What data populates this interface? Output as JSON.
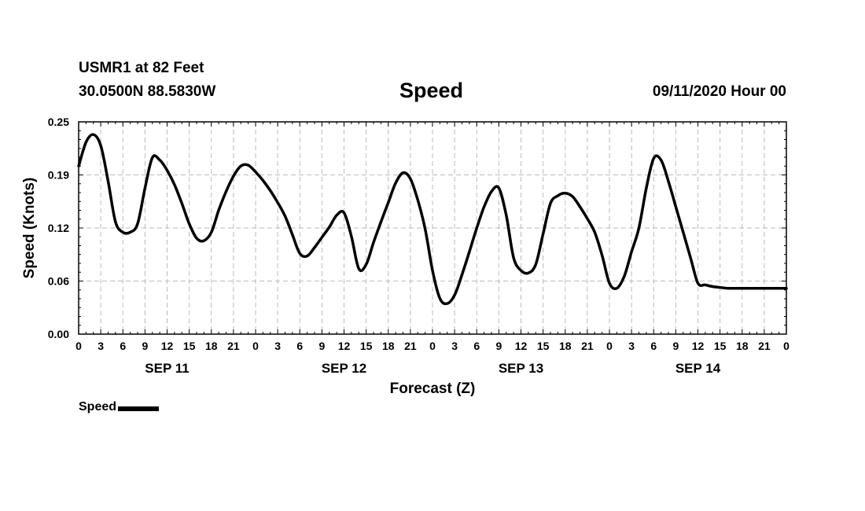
{
  "header": {
    "station": "USMR1 at 82 Feet",
    "coords": "30.0500N 88.5830W",
    "title": "Speed",
    "run": "09/11/2020 Hour 00"
  },
  "chart_data": {
    "type": "line",
    "title": "Speed",
    "xlabel": "Forecast (Z)",
    "ylabel": "Speed (Knots)",
    "ylim": [
      0,
      0.25
    ],
    "yticks": [
      "0.00",
      "0.06",
      "0.12",
      "0.19",
      "0.25"
    ],
    "xlim": [
      0,
      96
    ],
    "xtick_labels": [
      "0",
      "3",
      "6",
      "9",
      "12",
      "15",
      "18",
      "21",
      "0",
      "3",
      "6",
      "9",
      "12",
      "15",
      "18",
      "21",
      "0",
      "3",
      "6",
      "9",
      "12",
      "15",
      "18",
      "21",
      "0",
      "3",
      "6",
      "9",
      "12",
      "15",
      "18",
      "21",
      "0"
    ],
    "date_labels": [
      "SEP 11",
      "SEP 12",
      "SEP 13",
      "SEP 14"
    ],
    "grid": true,
    "legend": "bottom-left",
    "series": [
      {
        "name": "Speed",
        "color": "#000000",
        "x": [
          0,
          1,
          2,
          3,
          4,
          5,
          6,
          7,
          8,
          9,
          10,
          11,
          12,
          13,
          14,
          15,
          16,
          17,
          18,
          19,
          20,
          21,
          22,
          23,
          24,
          25,
          26,
          27,
          28,
          29,
          30,
          31,
          32,
          33,
          34,
          35,
          36,
          37,
          38,
          39,
          40,
          41,
          42,
          43,
          44,
          45,
          46,
          47,
          48,
          49,
          50,
          51,
          52,
          53,
          54,
          55,
          56,
          57,
          58,
          59,
          60,
          61,
          62,
          63,
          64,
          65,
          66,
          67,
          68,
          69,
          70,
          71,
          72,
          73,
          74,
          75,
          76,
          77,
          78,
          79,
          80,
          81,
          82,
          83,
          84,
          85,
          86,
          87,
          88,
          89,
          90,
          91,
          92,
          93,
          94,
          95,
          96
        ],
        "y": [
          0.198,
          0.226,
          0.235,
          0.222,
          0.18,
          0.132,
          0.12,
          0.12,
          0.13,
          0.172,
          0.208,
          0.205,
          0.193,
          0.176,
          0.154,
          0.13,
          0.113,
          0.11,
          0.12,
          0.146,
          0.168,
          0.186,
          0.198,
          0.199,
          0.191,
          0.181,
          0.169,
          0.155,
          0.139,
          0.117,
          0.095,
          0.092,
          0.102,
          0.114,
          0.126,
          0.14,
          0.143,
          0.115,
          0.077,
          0.082,
          0.108,
          0.132,
          0.155,
          0.178,
          0.19,
          0.183,
          0.158,
          0.124,
          0.075,
          0.042,
          0.036,
          0.046,
          0.07,
          0.097,
          0.125,
          0.15,
          0.168,
          0.172,
          0.14,
          0.09,
          0.075,
          0.072,
          0.082,
          0.118,
          0.154,
          0.163,
          0.166,
          0.162,
          0.15,
          0.136,
          0.12,
          0.093,
          0.06,
          0.054,
          0.068,
          0.097,
          0.125,
          0.172,
          0.207,
          0.205,
          0.18,
          0.15,
          0.12,
          0.09,
          0.06,
          0.058,
          0.056,
          0.055,
          0.054,
          0.054,
          0.054,
          0.054,
          0.054,
          0.054,
          0.054,
          0.054,
          0.054
        ]
      }
    ]
  }
}
